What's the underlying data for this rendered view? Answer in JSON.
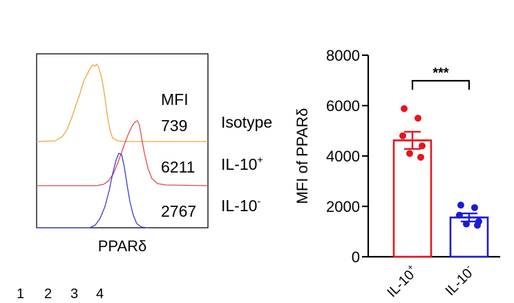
{
  "chart_data": [
    {
      "type": "histogram",
      "xlabel": "PPARδ",
      "header": "MFI",
      "series": [
        {
          "name": "Isotype",
          "mfi": "739",
          "color": "#f2a33a"
        },
        {
          "name": "IL-10",
          "superscript": "+",
          "mfi": "6211",
          "color": "#e24a4a"
        },
        {
          "name": "IL-10",
          "superscript": "-",
          "mfi": "2767",
          "color": "#3a3ad6"
        }
      ]
    },
    {
      "type": "bar",
      "ylabel": "MFI of PPARδ",
      "ylim": [
        0,
        8000
      ],
      "yticks": [
        0,
        2000,
        4000,
        6000,
        8000
      ],
      "categories": [
        {
          "label": "IL-10",
          "superscript": "+"
        },
        {
          "label": "IL-10",
          "superscript": "-"
        }
      ],
      "values": [
        4620,
        1560
      ],
      "errors": [
        340,
        160
      ],
      "points": [
        [
          5880,
          5500,
          4800,
          4400,
          4100,
          3950
        ],
        [
          2050,
          1950,
          1650,
          1400,
          1300,
          1250
        ]
      ],
      "colors": [
        "#e8141c",
        "#1b1bd4"
      ],
      "significance": "***"
    }
  ],
  "footer": {
    "numbers": [
      "1",
      "2",
      "3",
      "4"
    ]
  }
}
